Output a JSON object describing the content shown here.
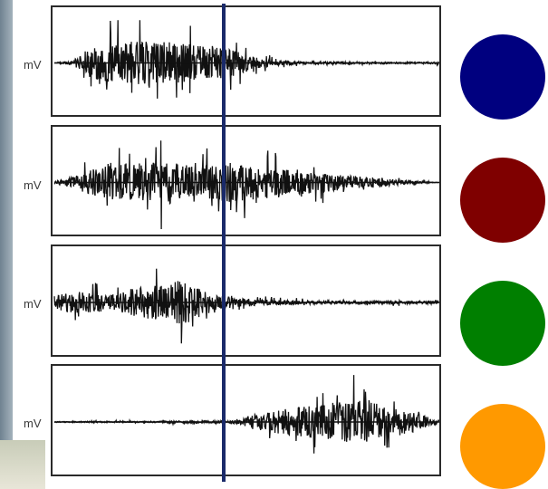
{
  "chart_data": {
    "type": "line",
    "description_channels": 4,
    "ylabel": "mV",
    "series": [
      {
        "envelope": [
          0.0,
          0.1,
          0.7,
          0.85,
          0.95,
          1.0,
          0.95,
          0.85,
          0.8,
          0.75,
          0.55,
          0.25,
          0.12,
          0.08,
          0.06,
          0.05,
          0.05,
          0.04,
          0.04,
          0.04,
          0.04,
          0.04
        ]
      },
      {
        "envelope": [
          0.05,
          0.25,
          0.6,
          0.75,
          0.9,
          0.85,
          0.95,
          0.9,
          0.85,
          0.9,
          0.85,
          0.7,
          0.6,
          0.55,
          0.5,
          0.45,
          0.3,
          0.25,
          0.2,
          0.1,
          0.05,
          0.0
        ]
      },
      {
        "envelope": [
          0.3,
          0.45,
          0.5,
          0.35,
          0.65,
          0.7,
          0.8,
          1.0,
          0.6,
          0.3,
          0.2,
          0.15,
          0.12,
          0.1,
          0.08,
          0.08,
          0.07,
          0.07,
          0.07,
          0.07,
          0.07,
          0.07
        ]
      },
      {
        "envelope": [
          0.02,
          0.02,
          0.03,
          0.03,
          0.03,
          0.03,
          0.04,
          0.05,
          0.05,
          0.05,
          0.08,
          0.35,
          0.5,
          0.6,
          0.7,
          0.85,
          1.0,
          0.9,
          0.75,
          0.6,
          0.3,
          0.1
        ]
      }
    ],
    "event_marker": {
      "color": "#1a2a6a"
    },
    "channel_colors": [
      "#00007f",
      "#7f0000",
      "#007f00",
      "#ff9900"
    ]
  },
  "labels": {
    "ch1": "mV",
    "ch2": "mV",
    "ch3": "mV",
    "ch4": "mV"
  }
}
